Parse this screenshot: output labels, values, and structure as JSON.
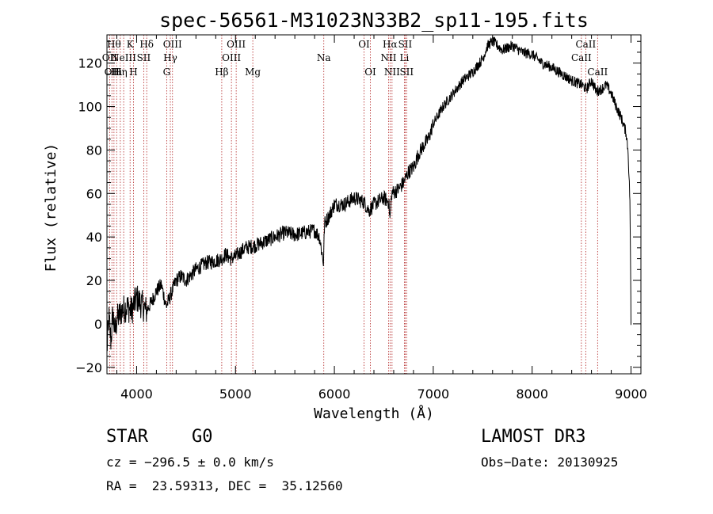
{
  "chart_data": {
    "type": "line",
    "title": "spec-56561-M31023N33B2_sp11-195.fits",
    "xlabel": "Wavelength (Å)",
    "ylabel": "Flux (relative)",
    "xlim": [
      3700,
      9100
    ],
    "ylim": [
      -23,
      133
    ],
    "xticks": [
      4000,
      5000,
      6000,
      7000,
      8000,
      9000
    ],
    "yticks": [
      -20,
      0,
      20,
      40,
      60,
      80,
      100,
      120
    ],
    "series": [
      {
        "name": "flux",
        "x": [
          3700,
          3720,
          3740,
          3760,
          3780,
          3800,
          3850,
          3900,
          3950,
          4000,
          4050,
          4100,
          4150,
          4200,
          4250,
          4300,
          4350,
          4400,
          4450,
          4500,
          4600,
          4700,
          4800,
          4861,
          4900,
          4950,
          5000,
          5100,
          5200,
          5300,
          5400,
          5500,
          5600,
          5700,
          5800,
          5850,
          5890,
          5900,
          5950,
          6000,
          6100,
          6200,
          6300,
          6350,
          6400,
          6500,
          6550,
          6563,
          6580,
          6650,
          6700,
          6750,
          6800,
          6850,
          6900,
          6950,
          7000,
          7100,
          7200,
          7300,
          7400,
          7500,
          7550,
          7600,
          7700,
          7800,
          7900,
          8000,
          8100,
          8200,
          8300,
          8400,
          8500,
          8550,
          8600,
          8650,
          8700,
          8750,
          8800,
          8850,
          8900,
          8950,
          8970,
          8990,
          9000
        ],
        "y": [
          -12,
          3,
          -8,
          5,
          -4,
          2,
          6,
          8,
          6,
          12,
          9,
          6,
          10,
          15,
          18,
          8,
          14,
          20,
          22,
          20,
          25,
          28,
          29,
          30,
          32,
          30,
          31,
          35,
          36,
          38,
          40,
          42,
          41,
          42,
          43,
          40,
          28,
          46,
          50,
          55,
          55,
          58,
          56,
          52,
          55,
          58,
          56,
          48,
          60,
          62,
          65,
          70,
          72,
          78,
          82,
          85,
          92,
          100,
          106,
          112,
          116,
          122,
          128,
          130,
          126,
          128,
          125,
          124,
          120,
          118,
          115,
          112,
          110,
          108,
          112,
          107,
          108,
          110,
          106,
          100,
          95,
          88,
          80,
          55,
          0
        ]
      }
    ],
    "line_labels": [
      {
        "wl": 3727,
        "tier": 2,
        "text": "OII"
      },
      {
        "wl": 3750,
        "tier": 3,
        "text": "OII"
      },
      {
        "wl": 3771,
        "tier": 1,
        "text": "Hθ"
      },
      {
        "wl": 3798,
        "tier": 3,
        "text": "Hι"
      },
      {
        "wl": 3835,
        "tier": 3,
        "text": "Hη"
      },
      {
        "wl": 3869,
        "tier": 2,
        "text": "NeIII"
      },
      {
        "wl": 3934,
        "tier": 1,
        "text": "K"
      },
      {
        "wl": 3968,
        "tier": 3,
        "text": "H"
      },
      {
        "wl": 4072,
        "tier": 2,
        "text": "SII"
      },
      {
        "wl": 4102,
        "tier": 1,
        "text": "Hδ"
      },
      {
        "wl": 4304,
        "tier": 3,
        "text": "G"
      },
      {
        "wl": 4341,
        "tier": 2,
        "text": "Hγ"
      },
      {
        "wl": 4363,
        "tier": 1,
        "text": "OIII"
      },
      {
        "wl": 4861,
        "tier": 3,
        "text": "Hβ"
      },
      {
        "wl": 4959,
        "tier": 2,
        "text": "OIII"
      },
      {
        "wl": 5007,
        "tier": 1,
        "text": "OIII"
      },
      {
        "wl": 5175,
        "tier": 3,
        "text": "Mg"
      },
      {
        "wl": 5893,
        "tier": 2,
        "text": "Na"
      },
      {
        "wl": 6300,
        "tier": 1,
        "text": "OI"
      },
      {
        "wl": 6364,
        "tier": 3,
        "text": "OI"
      },
      {
        "wl": 6548,
        "tier": 2,
        "text": "NII"
      },
      {
        "wl": 6563,
        "tier": 1,
        "text": "Hα"
      },
      {
        "wl": 6583,
        "tier": 3,
        "text": "NII"
      },
      {
        "wl": 6708,
        "tier": 2,
        "text": "Li"
      },
      {
        "wl": 6716,
        "tier": 1,
        "text": "SII"
      },
      {
        "wl": 6731,
        "tier": 3,
        "text": "SII"
      },
      {
        "wl": 8498,
        "tier": 2,
        "text": "CaII"
      },
      {
        "wl": 8542,
        "tier": 1,
        "text": "CaII"
      },
      {
        "wl": 8662,
        "tier": 3,
        "text": "CaII"
      }
    ],
    "colors": {
      "line": "#000000",
      "marker": "#b22222",
      "axis": "#000000"
    }
  },
  "info": {
    "class_label": "STAR",
    "subclass": "G0",
    "survey": "LAMOST DR3",
    "redshift": "cz = −296.5 ± 0.0 km/s",
    "obs_date": "Obs−Date: 20130925",
    "coords": "RA =  23.59313, DEC =  35.12560"
  }
}
